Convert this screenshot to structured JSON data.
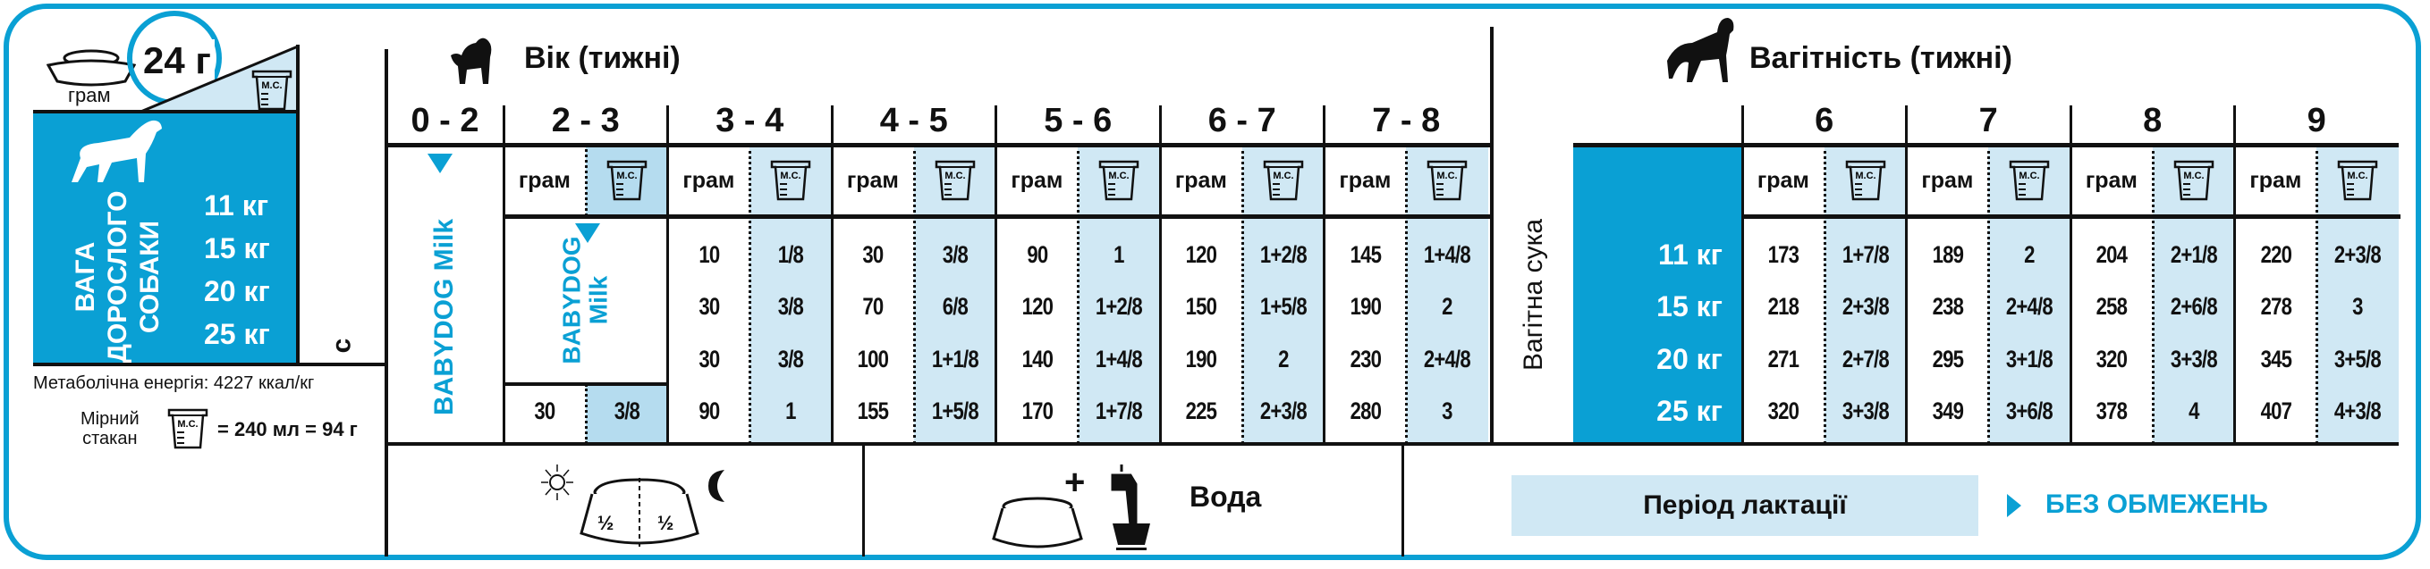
{
  "colors": {
    "accent": "#0aa0d4",
    "light": "#d0e8f4",
    "mid": "#b5dcef"
  },
  "left": {
    "daily_amount": "24 г",
    "gram_label": "грам",
    "cup_label": "М.С.",
    "weight_title_lines": [
      "ВАГА",
      "ДОРОСЛОГО",
      "СОБАКИ"
    ],
    "weights": [
      "11 кг",
      "15 кг",
      "20 кг",
      "25 кг"
    ],
    "c_mark": "с",
    "energy": "Метаболічна енергія: 4227 ккал/кг",
    "cup_text_lines": [
      "Мірний",
      "стакан"
    ],
    "cup_equiv": "= 240 мл = 94 г"
  },
  "puppy": {
    "title": "Вік (тижні)",
    "first_period": "0 - 2",
    "babydog_milk": "BABYDOG Milk",
    "babydog_milk_lines": [
      "BABYDOG",
      "Milk"
    ],
    "gram_label": "грам",
    "periods": [
      {
        "label": "2 - 3",
        "rows": [
          null,
          null,
          null,
          [
            "30",
            "3/8"
          ]
        ]
      },
      {
        "label": "3 - 4",
        "rows": [
          [
            "10",
            "1/8"
          ],
          [
            "30",
            "3/8"
          ],
          [
            "30",
            "3/8"
          ],
          [
            "90",
            "1"
          ]
        ]
      },
      {
        "label": "4 - 5",
        "rows": [
          [
            "30",
            "3/8"
          ],
          [
            "70",
            "6/8"
          ],
          [
            "100",
            "1+1/8"
          ],
          [
            "155",
            "1+5/8"
          ]
        ]
      },
      {
        "label": "5 - 6",
        "rows": [
          [
            "90",
            "1"
          ],
          [
            "120",
            "1+2/8"
          ],
          [
            "140",
            "1+4/8"
          ],
          [
            "170",
            "1+7/8"
          ]
        ]
      },
      {
        "label": "6 - 7",
        "rows": [
          [
            "120",
            "1+2/8"
          ],
          [
            "150",
            "1+5/8"
          ],
          [
            "190",
            "2"
          ],
          [
            "225",
            "2+3/8"
          ]
        ]
      },
      {
        "label": "7 - 8",
        "rows": [
          [
            "145",
            "1+4/8"
          ],
          [
            "190",
            "2"
          ],
          [
            "230",
            "2+4/8"
          ],
          [
            "280",
            "3"
          ]
        ]
      }
    ]
  },
  "pregnancy": {
    "title": "Вагітність (тижні)",
    "side_label": "Вагітна сука",
    "weights": [
      "11 кг",
      "15 кг",
      "20 кг",
      "25 кг"
    ],
    "gram_label": "грам",
    "weeks": [
      {
        "label": "6",
        "rows": [
          [
            "173",
            "1+7/8"
          ],
          [
            "218",
            "2+3/8"
          ],
          [
            "271",
            "2+7/8"
          ],
          [
            "320",
            "3+3/8"
          ]
        ]
      },
      {
        "label": "7",
        "rows": [
          [
            "189",
            "2"
          ],
          [
            "238",
            "2+4/8"
          ],
          [
            "295",
            "3+1/8"
          ],
          [
            "349",
            "3+6/8"
          ]
        ]
      },
      {
        "label": "8",
        "rows": [
          [
            "204",
            "2+1/8"
          ],
          [
            "258",
            "2+6/8"
          ],
          [
            "320",
            "3+3/8"
          ],
          [
            "378",
            "4"
          ]
        ]
      },
      {
        "label": "9",
        "rows": [
          [
            "220",
            "2+3/8"
          ],
          [
            "278",
            "3"
          ],
          [
            "345",
            "3+5/8"
          ],
          [
            "407",
            "4+3/8"
          ]
        ]
      }
    ]
  },
  "bottom": {
    "half": "½",
    "water": "Вода",
    "lactation": "Період лактації",
    "unlimited": "БЕЗ ОБМЕЖЕНЬ",
    "icons": [
      "sun-icon",
      "moon-icon",
      "food-bowl-icon",
      "water-tap-icon",
      "arrow-right-icon"
    ]
  }
}
